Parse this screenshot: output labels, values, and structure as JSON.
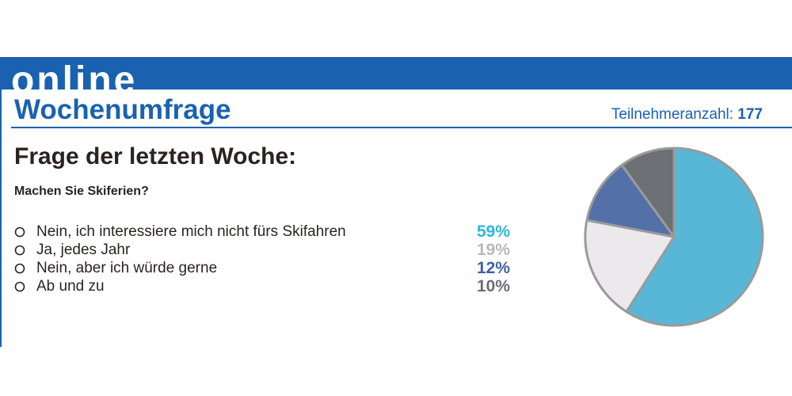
{
  "banner": {
    "word": "online"
  },
  "header": {
    "title": "Wochenumfrage",
    "participants_label": "Teilnehmeranzahl:",
    "participants_count": "177"
  },
  "poll": {
    "heading": "Frage der letzten Woche:",
    "question": "Machen Sie Skiferien?",
    "answers": [
      {
        "label": "Nein, ich interessiere mich nicht fürs Skifahren",
        "percent": "59%",
        "color": "#2ab8dc"
      },
      {
        "label": "Ja, jedes Jahr",
        "percent": "19%",
        "color": "#b8b8b8"
      },
      {
        "label": "Nein, aber ich würde gerne",
        "percent": "12%",
        "color": "#3f5fa5"
      },
      {
        "label": "Ab und zu",
        "percent": "10%",
        "color": "#6d6e71"
      }
    ]
  },
  "chart_data": {
    "type": "pie",
    "categories": [
      "Nein, ich interessiere mich nicht fürs Skifahren",
      "Ja, jedes Jahr",
      "Nein, aber ich würde gerne",
      "Ab und zu"
    ],
    "values": [
      59,
      19,
      12,
      10
    ],
    "colors": [
      "#58b7d6",
      "#ebe9ec",
      "#5470a8",
      "#6c6f74"
    ],
    "outline_color": "#9a9a9a",
    "start": "12 o'clock",
    "direction": "clockwise"
  }
}
